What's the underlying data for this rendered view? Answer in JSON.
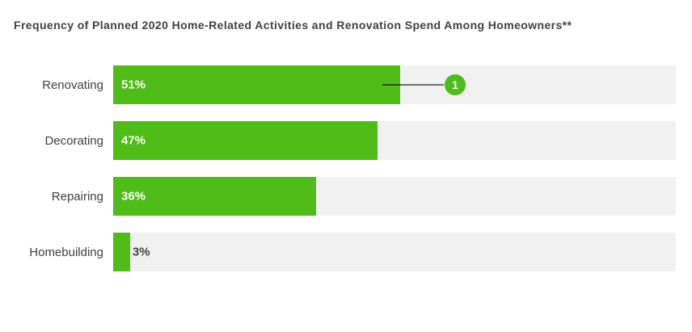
{
  "header": {
    "title": "Frequency of Planned 2020 Home-Related Activities and Renovation Spend Among Homeowners**"
  },
  "chart_data": {
    "type": "bar",
    "orientation": "horizontal",
    "title": "Frequency of Planned 2020 Home-Related Activities and Renovation Spend Among Homeowners**",
    "categories": [
      "Renovating",
      "Decorating",
      "Repairing",
      "Homebuilding"
    ],
    "values": [
      51,
      47,
      36,
      3
    ],
    "value_labels": [
      "51%",
      "47%",
      "36%",
      "3%"
    ],
    "xlim": [
      0,
      100
    ],
    "grid": false,
    "legend": "none",
    "annotations": [
      {
        "badge": "1",
        "category": "Renovating",
        "style": "circle-badge-with-connector-line"
      }
    ],
    "colors": {
      "bar": "#4fbc17",
      "track": "#f1f1f2",
      "value_label_inside": "#ffffff",
      "value_label_outside": "#414042",
      "category_label": "#414042",
      "title": "#414042",
      "connector_line": "#58595b",
      "badge_background": "#4fbc17",
      "badge_text": "#ffffff",
      "page_background": "#ffffff"
    }
  }
}
